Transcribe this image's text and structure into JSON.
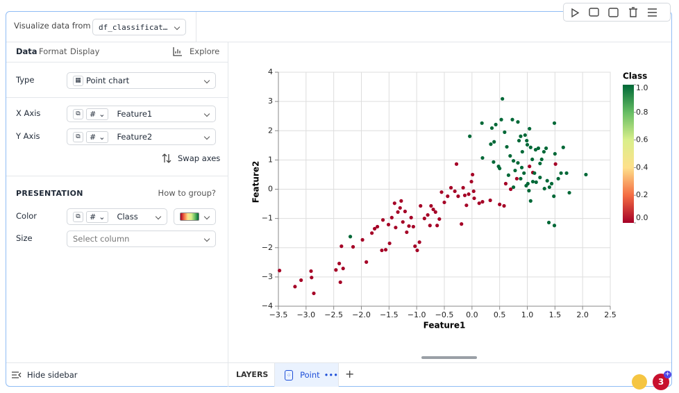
{
  "topbar": {
    "source_label": "Visualize data from",
    "source_value": "df_classificat…"
  },
  "sidebar": {
    "tabs": [
      "Data",
      "Format",
      "Display"
    ],
    "explore": "Explore",
    "type_label": "Type",
    "type_value": "Point chart",
    "x_label": "X Axis",
    "x_value": "Feature1",
    "y_label": "Y Axis",
    "y_value": "Feature2",
    "column_type": "#",
    "swap": "Swap axes",
    "presentation": "PRESENTATION",
    "how_to_group": "How to group?",
    "color_label": "Color",
    "color_value": "Class",
    "size_label": "Size",
    "size_placeholder": "Select column",
    "hide": "Hide sidebar"
  },
  "layers": {
    "title": "LAYERS",
    "tab": "Point",
    "more": "•••",
    "add": "+"
  },
  "badge": "3",
  "chart_data": {
    "type": "scatter",
    "x_label": "Feature1",
    "y_label": "Feature2",
    "xlim": [
      -3.5,
      2.5
    ],
    "ylim": [
      -4,
      4
    ],
    "grid": true,
    "xticks": [
      {
        "value": -3.5,
        "label": "−3.5"
      },
      {
        "value": -3,
        "label": "−3.0"
      },
      {
        "value": -2.5,
        "label": "−2.5"
      },
      {
        "value": -2,
        "label": "−2.0"
      },
      {
        "value": -1.5,
        "label": "−1.5"
      },
      {
        "value": -1,
        "label": "−1.0"
      },
      {
        "value": -0.5,
        "label": "−0.5"
      },
      {
        "value": 0,
        "label": "0.0"
      },
      0.5,
      {
        "value": 1,
        "label": "1.0"
      },
      1.5,
      {
        "value": 2,
        "label": "2.0"
      },
      2.5
    ],
    "yticks": [
      {
        "value": -4,
        "label": "−4"
      },
      {
        "value": -3,
        "label": "−3"
      },
      {
        "value": -2,
        "label": "−2"
      },
      {
        "value": -1,
        "label": "−1"
      },
      0,
      1,
      2,
      3,
      4
    ],
    "colorbar": {
      "title": "Class",
      "colors": [
        "#a50026",
        "#f46d43",
        "#fee08b",
        "#d9ef8b",
        "#66bd63",
        "#006837"
      ],
      "ticks": [
        {
          "value": 0,
          "label": "0.0"
        },
        0.2,
        0.4,
        0.6,
        0.8,
        {
          "value": 1,
          "label": "1.0"
        }
      ]
    },
    "x": [
      -3.48,
      -3.2,
      -3.09,
      -2.91,
      -2.9,
      -2.86,
      -2.46,
      -2.4,
      -2.38,
      -2.36,
      -2.33,
      -2.15,
      -1.98,
      -1.91,
      -1.81,
      -1.76,
      -1.71,
      -1.63,
      -1.61,
      -1.56,
      -1.51,
      -1.49,
      -1.45,
      -1.4,
      -1.38,
      -1.34,
      -1.3,
      -1.28,
      -1.25,
      -1.21,
      -1.18,
      -1.14,
      -1.1,
      -1.06,
      -1.03,
      -0.99,
      -0.95,
      -0.93,
      -0.86,
      -0.8,
      -0.76,
      -0.74,
      -0.7,
      -0.66,
      -0.63,
      -0.59,
      -0.55,
      -0.5,
      -0.44,
      -0.38,
      -0.31,
      -0.28,
      -0.25,
      -0.19,
      -0.16,
      -0.13,
      -0.1,
      -0.06,
      -0.01,
      0.01,
      0.03,
      0.04,
      0.13,
      0.19,
      0.33,
      0.5,
      0.58,
      0.61,
      0.7,
      0.81,
      1.04,
      1.1,
      1.51,
      -2.2,
      -0.04,
      0.18,
      0.36,
      0.43,
      0.55,
      0.53,
      0.59,
      0.73,
      0.83,
      0.88,
      0.34,
      0.4,
      0.48,
      0.5,
      0.19,
      0.39,
      0.63,
      0.69,
      0.75,
      0.78,
      0.83,
      0.88,
      0.91,
      0.96,
      0.99,
      1.0,
      1.04,
      1.06,
      1.09,
      1.13,
      1.15,
      1.16,
      1.2,
      1.23,
      1.26,
      1.3,
      1.34,
      1.36,
      1.4,
      1.44,
      1.49,
      1.48,
      1.56,
      1.61,
      1.65,
      1.71,
      1.76,
      2.06,
      1.39,
      1.49,
      1.06,
      1.03,
      0.98,
      0.94,
      0.9,
      0.75,
      0.66,
      1.31,
      1.23,
      1.5,
      1.1,
      0.85,
      1.01
    ],
    "y": [
      -2.78,
      -3.33,
      -3.11,
      -2.8,
      -3.02,
      -3.56,
      -2.76,
      -2.54,
      -3.18,
      -1.95,
      -2.71,
      -1.97,
      -1.73,
      -2.49,
      -1.5,
      -1.35,
      -1.28,
      -2.09,
      -1.05,
      -2.07,
      -1.21,
      -1.85,
      -0.97,
      -0.48,
      -1.31,
      -0.78,
      -0.64,
      -0.4,
      -1.12,
      -0.76,
      -1.47,
      -1.26,
      -0.97,
      -1.28,
      -1.95,
      -2.09,
      -1.81,
      -0.57,
      -1.0,
      -0.88,
      -1.24,
      -0.57,
      -0.69,
      -0.78,
      -1.24,
      -1.02,
      -0.1,
      -0.45,
      -0.24,
      0.05,
      -0.07,
      0.86,
      -0.24,
      -1.19,
      0.05,
      -0.21,
      -0.55,
      -0.17,
      0.26,
      0.5,
      -0.07,
      -0.31,
      -0.48,
      -0.43,
      -0.38,
      -0.52,
      -0.57,
      0.19,
      0,
      0.36,
      0.78,
      0.57,
      0.86,
      -1.62,
      1.81,
      2.26,
      2.09,
      2.21,
      3.09,
      2.38,
      1.95,
      2.38,
      2.3,
      1.81,
      1.54,
      1.62,
      0.78,
      0.71,
      1.07,
      0.93,
      1.45,
      1.14,
      0.97,
      0.64,
      0.9,
      0.36,
      1.28,
      1.85,
      1.66,
      1.52,
      2.07,
      1.43,
      1.02,
      0.55,
      1.35,
      0.24,
      1.4,
      0.88,
      1.02,
      1.28,
      1.4,
      0.29,
      0.07,
      0.19,
      2.26,
      -0.24,
      0.36,
      0.55,
      1.43,
      0.55,
      -0.12,
      0.5,
      -1.14,
      -1.24,
      -0.4,
      -0.05,
      0.12,
      0.55,
      0.74,
      0.07,
      0.48,
      0.02,
      0.4,
      1.21,
      0.26,
      1.66,
      0.19
    ],
    "color_values": [
      0,
      0,
      0,
      0,
      0,
      0,
      0,
      0,
      0,
      0,
      0,
      0,
      0,
      0,
      0,
      0,
      0,
      0,
      0,
      0,
      0,
      0,
      0,
      0,
      0,
      0,
      0,
      0,
      0,
      0,
      0,
      0,
      0,
      0,
      0,
      0,
      0,
      0,
      0,
      0,
      0,
      0,
      0,
      0,
      0,
      0,
      0,
      0,
      0,
      0,
      0,
      0,
      0,
      0,
      0,
      0,
      0,
      0,
      0,
      0,
      0,
      0,
      0,
      0,
      0,
      0,
      0,
      0,
      0,
      0,
      0,
      0,
      0,
      1,
      1,
      1,
      1,
      1,
      1,
      1,
      1,
      1,
      1,
      1,
      1,
      1,
      1,
      1,
      1,
      1,
      1,
      1,
      1,
      1,
      1,
      1,
      1,
      1,
      1,
      1,
      1,
      1,
      1,
      1,
      1,
      1,
      1,
      1,
      1,
      1,
      1,
      1,
      1,
      1,
      1,
      1,
      1,
      1,
      1,
      1,
      1,
      1,
      1,
      1,
      1,
      1,
      1,
      1,
      1,
      1,
      1,
      1,
      1,
      1,
      1,
      1,
      1
    ]
  }
}
